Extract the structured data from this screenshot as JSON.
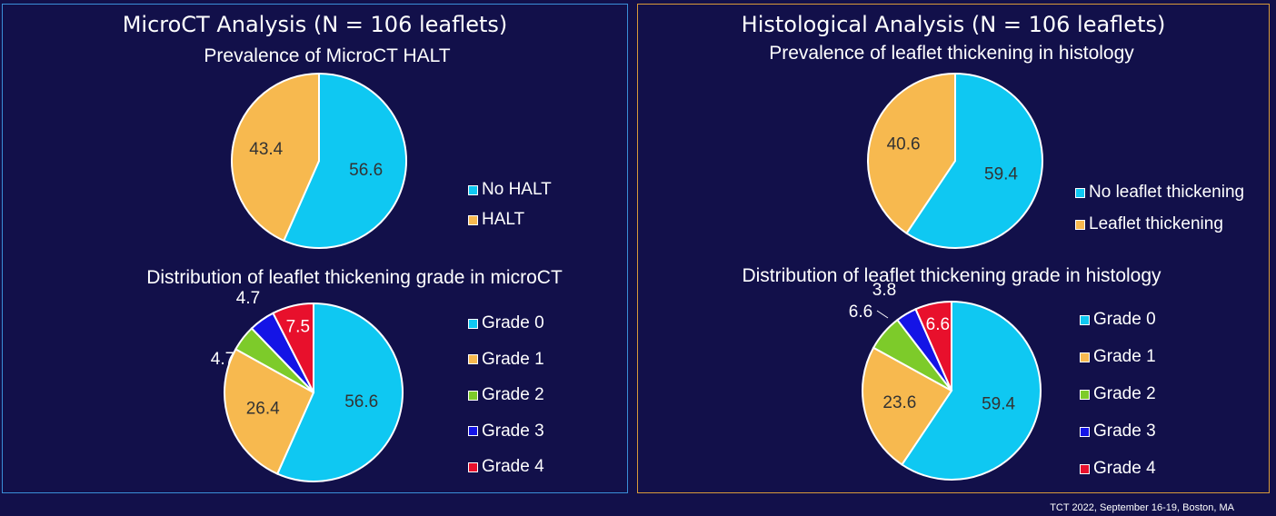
{
  "panels": {
    "left": {
      "title": "MicroCT Analysis (N = 106 leaflets)"
    },
    "right": {
      "title": "Histological Analysis (N = 106 leaflets)"
    }
  },
  "footer": "TCT 2022, September 16-19, Boston, MA",
  "colors": {
    "grade0": "#0fc8f2",
    "grade1": "#f7b94f",
    "grade2": "#7dcb2a",
    "grade3": "#1414e6",
    "grade4": "#e8102c"
  },
  "chart_data": [
    {
      "id": "microct-prevalence",
      "type": "pie",
      "title": "Prevalence of MicroCT HALT",
      "categories": [
        "No HALT",
        "HALT"
      ],
      "values": [
        56.6,
        43.4
      ],
      "colors": [
        "#0fc8f2",
        "#f7b94f"
      ],
      "legend": "right"
    },
    {
      "id": "microct-grade",
      "type": "pie",
      "title": "Distribution of leaflet thickening grade in microCT",
      "categories": [
        "Grade 0",
        "Grade 1",
        "Grade 2",
        "Grade 3",
        "Grade 4"
      ],
      "values": [
        56.6,
        26.4,
        4.7,
        4.7,
        7.5
      ],
      "colors": [
        "#0fc8f2",
        "#f7b94f",
        "#7dcb2a",
        "#1414e6",
        "#e8102c"
      ],
      "legend": "right"
    },
    {
      "id": "histology-prevalence",
      "type": "pie",
      "title": "Prevalence of leaflet thickening in histology",
      "categories": [
        "No leaflet thickening",
        "Leaflet thickening"
      ],
      "values": [
        59.4,
        40.6
      ],
      "colors": [
        "#0fc8f2",
        "#f7b94f"
      ],
      "legend": "right"
    },
    {
      "id": "histology-grade",
      "type": "pie",
      "title": "Distribution of leaflet thickening grade in histology",
      "categories": [
        "Grade 0",
        "Grade 1",
        "Grade 2",
        "Grade 3",
        "Grade 4"
      ],
      "values": [
        59.4,
        23.6,
        6.6,
        3.8,
        6.6
      ],
      "colors": [
        "#0fc8f2",
        "#f7b94f",
        "#7dcb2a",
        "#1414e6",
        "#e8102c"
      ],
      "legend": "right"
    }
  ]
}
